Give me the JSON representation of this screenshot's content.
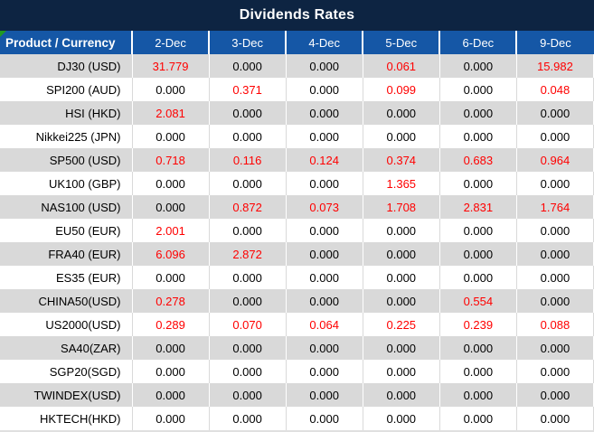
{
  "title": "Dividends Rates",
  "colors": {
    "title_bg": "#0D2442",
    "header_bg": "#1557A6",
    "header_text": "#FFFFFF",
    "row_alt_bg": "#D9D9D9",
    "row_bg": "#FFFFFF",
    "value_zero": "#000000",
    "value_nonzero": "#FF0000",
    "corner_marker_green": "#219A21"
  },
  "table": {
    "product_header": "Product / Currency",
    "date_columns": [
      "2-Dec",
      "3-Dec",
      "4-Dec",
      "5-Dec",
      "6-Dec",
      "9-Dec"
    ],
    "rows": [
      {
        "product": "DJ30 (USD)",
        "values": [
          "31.779",
          "0.000",
          "0.000",
          "0.061",
          "0.000",
          "15.982"
        ]
      },
      {
        "product": "SPI200 (AUD)",
        "values": [
          "0.000",
          "0.371",
          "0.000",
          "0.099",
          "0.000",
          "0.048"
        ]
      },
      {
        "product": "HSI (HKD)",
        "values": [
          "2.081",
          "0.000",
          "0.000",
          "0.000",
          "0.000",
          "0.000"
        ]
      },
      {
        "product": "Nikkei225 (JPN)",
        "values": [
          "0.000",
          "0.000",
          "0.000",
          "0.000",
          "0.000",
          "0.000"
        ]
      },
      {
        "product": "SP500 (USD)",
        "values": [
          "0.718",
          "0.116",
          "0.124",
          "0.374",
          "0.683",
          "0.964"
        ]
      },
      {
        "product": "UK100 (GBP)",
        "values": [
          "0.000",
          "0.000",
          "0.000",
          "1.365",
          "0.000",
          "0.000"
        ]
      },
      {
        "product": "NAS100 (USD)",
        "values": [
          "0.000",
          "0.872",
          "0.073",
          "1.708",
          "2.831",
          "1.764"
        ]
      },
      {
        "product": "EU50 (EUR)",
        "values": [
          "2.001",
          "0.000",
          "0.000",
          "0.000",
          "0.000",
          "0.000"
        ]
      },
      {
        "product": "FRA40 (EUR)",
        "values": [
          "6.096",
          "2.872",
          "0.000",
          "0.000",
          "0.000",
          "0.000"
        ]
      },
      {
        "product": "ES35 (EUR)",
        "values": [
          "0.000",
          "0.000",
          "0.000",
          "0.000",
          "0.000",
          "0.000"
        ]
      },
      {
        "product": "CHINA50(USD)",
        "values": [
          "0.278",
          "0.000",
          "0.000",
          "0.000",
          "0.554",
          "0.000"
        ]
      },
      {
        "product": "US2000(USD)",
        "values": [
          "0.289",
          "0.070",
          "0.064",
          "0.225",
          "0.239",
          "0.088"
        ]
      },
      {
        "product": "SA40(ZAR)",
        "values": [
          "0.000",
          "0.000",
          "0.000",
          "0.000",
          "0.000",
          "0.000"
        ]
      },
      {
        "product": "SGP20(SGD)",
        "values": [
          "0.000",
          "0.000",
          "0.000",
          "0.000",
          "0.000",
          "0.000"
        ]
      },
      {
        "product": "TWINDEX(USD)",
        "values": [
          "0.000",
          "0.000",
          "0.000",
          "0.000",
          "0.000",
          "0.000"
        ]
      },
      {
        "product": "HKTECH(HKD)",
        "values": [
          "0.000",
          "0.000",
          "0.000",
          "0.000",
          "0.000",
          "0.000"
        ]
      }
    ]
  }
}
